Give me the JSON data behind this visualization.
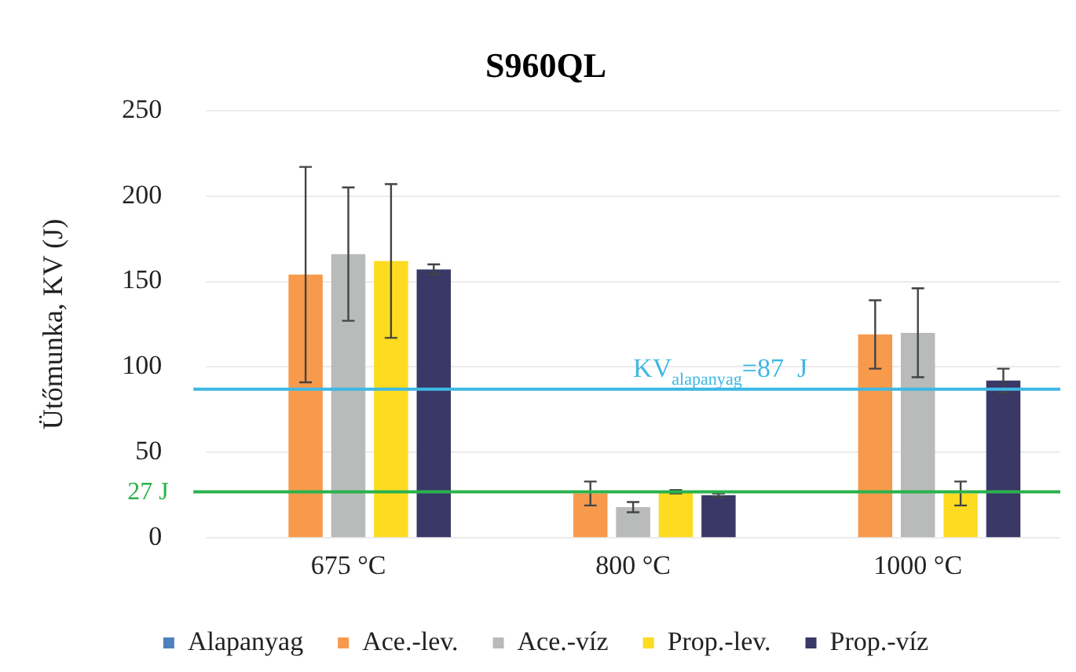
{
  "chart_data": {
    "type": "bar",
    "title": "S960QL",
    "ylabel": "Ütőmunka, KV (J)",
    "categories": [
      "675 °C",
      "800 °C",
      "1000 °C"
    ],
    "series": [
      {
        "name": "Alapanyag",
        "color": "#4f81bd",
        "values": [
          null,
          null,
          null
        ]
      },
      {
        "name": "Ace.-lev.",
        "color": "#f79a4c",
        "values": [
          154,
          26,
          119
        ],
        "errors": [
          63,
          7,
          20
        ]
      },
      {
        "name": "Ace.-víz",
        "color": "#b8bbb9",
        "values": [
          166,
          18,
          120
        ],
        "errors": [
          39,
          3,
          26
        ]
      },
      {
        "name": "Prop.-lev.",
        "color": "#fddb21",
        "values": [
          162,
          27,
          26
        ],
        "errors": [
          45,
          1,
          7
        ]
      },
      {
        "name": "Prop.-víz",
        "color": "#393867",
        "values": [
          157,
          25,
          92
        ],
        "errors": [
          3,
          1,
          7
        ]
      }
    ],
    "ylim": [
      0,
      250
    ],
    "yticks": [
      0,
      50,
      100,
      150,
      200,
      250
    ],
    "grid": "y",
    "legend": "bottom",
    "ref_lines": [
      {
        "axis": "y",
        "value": 87,
        "label": "KV$_{alapanyag}$=87  J",
        "color": "#3fb8e3"
      },
      {
        "axis": "y",
        "value": 27,
        "label": "27 J",
        "color": "#2bb24c"
      }
    ]
  }
}
